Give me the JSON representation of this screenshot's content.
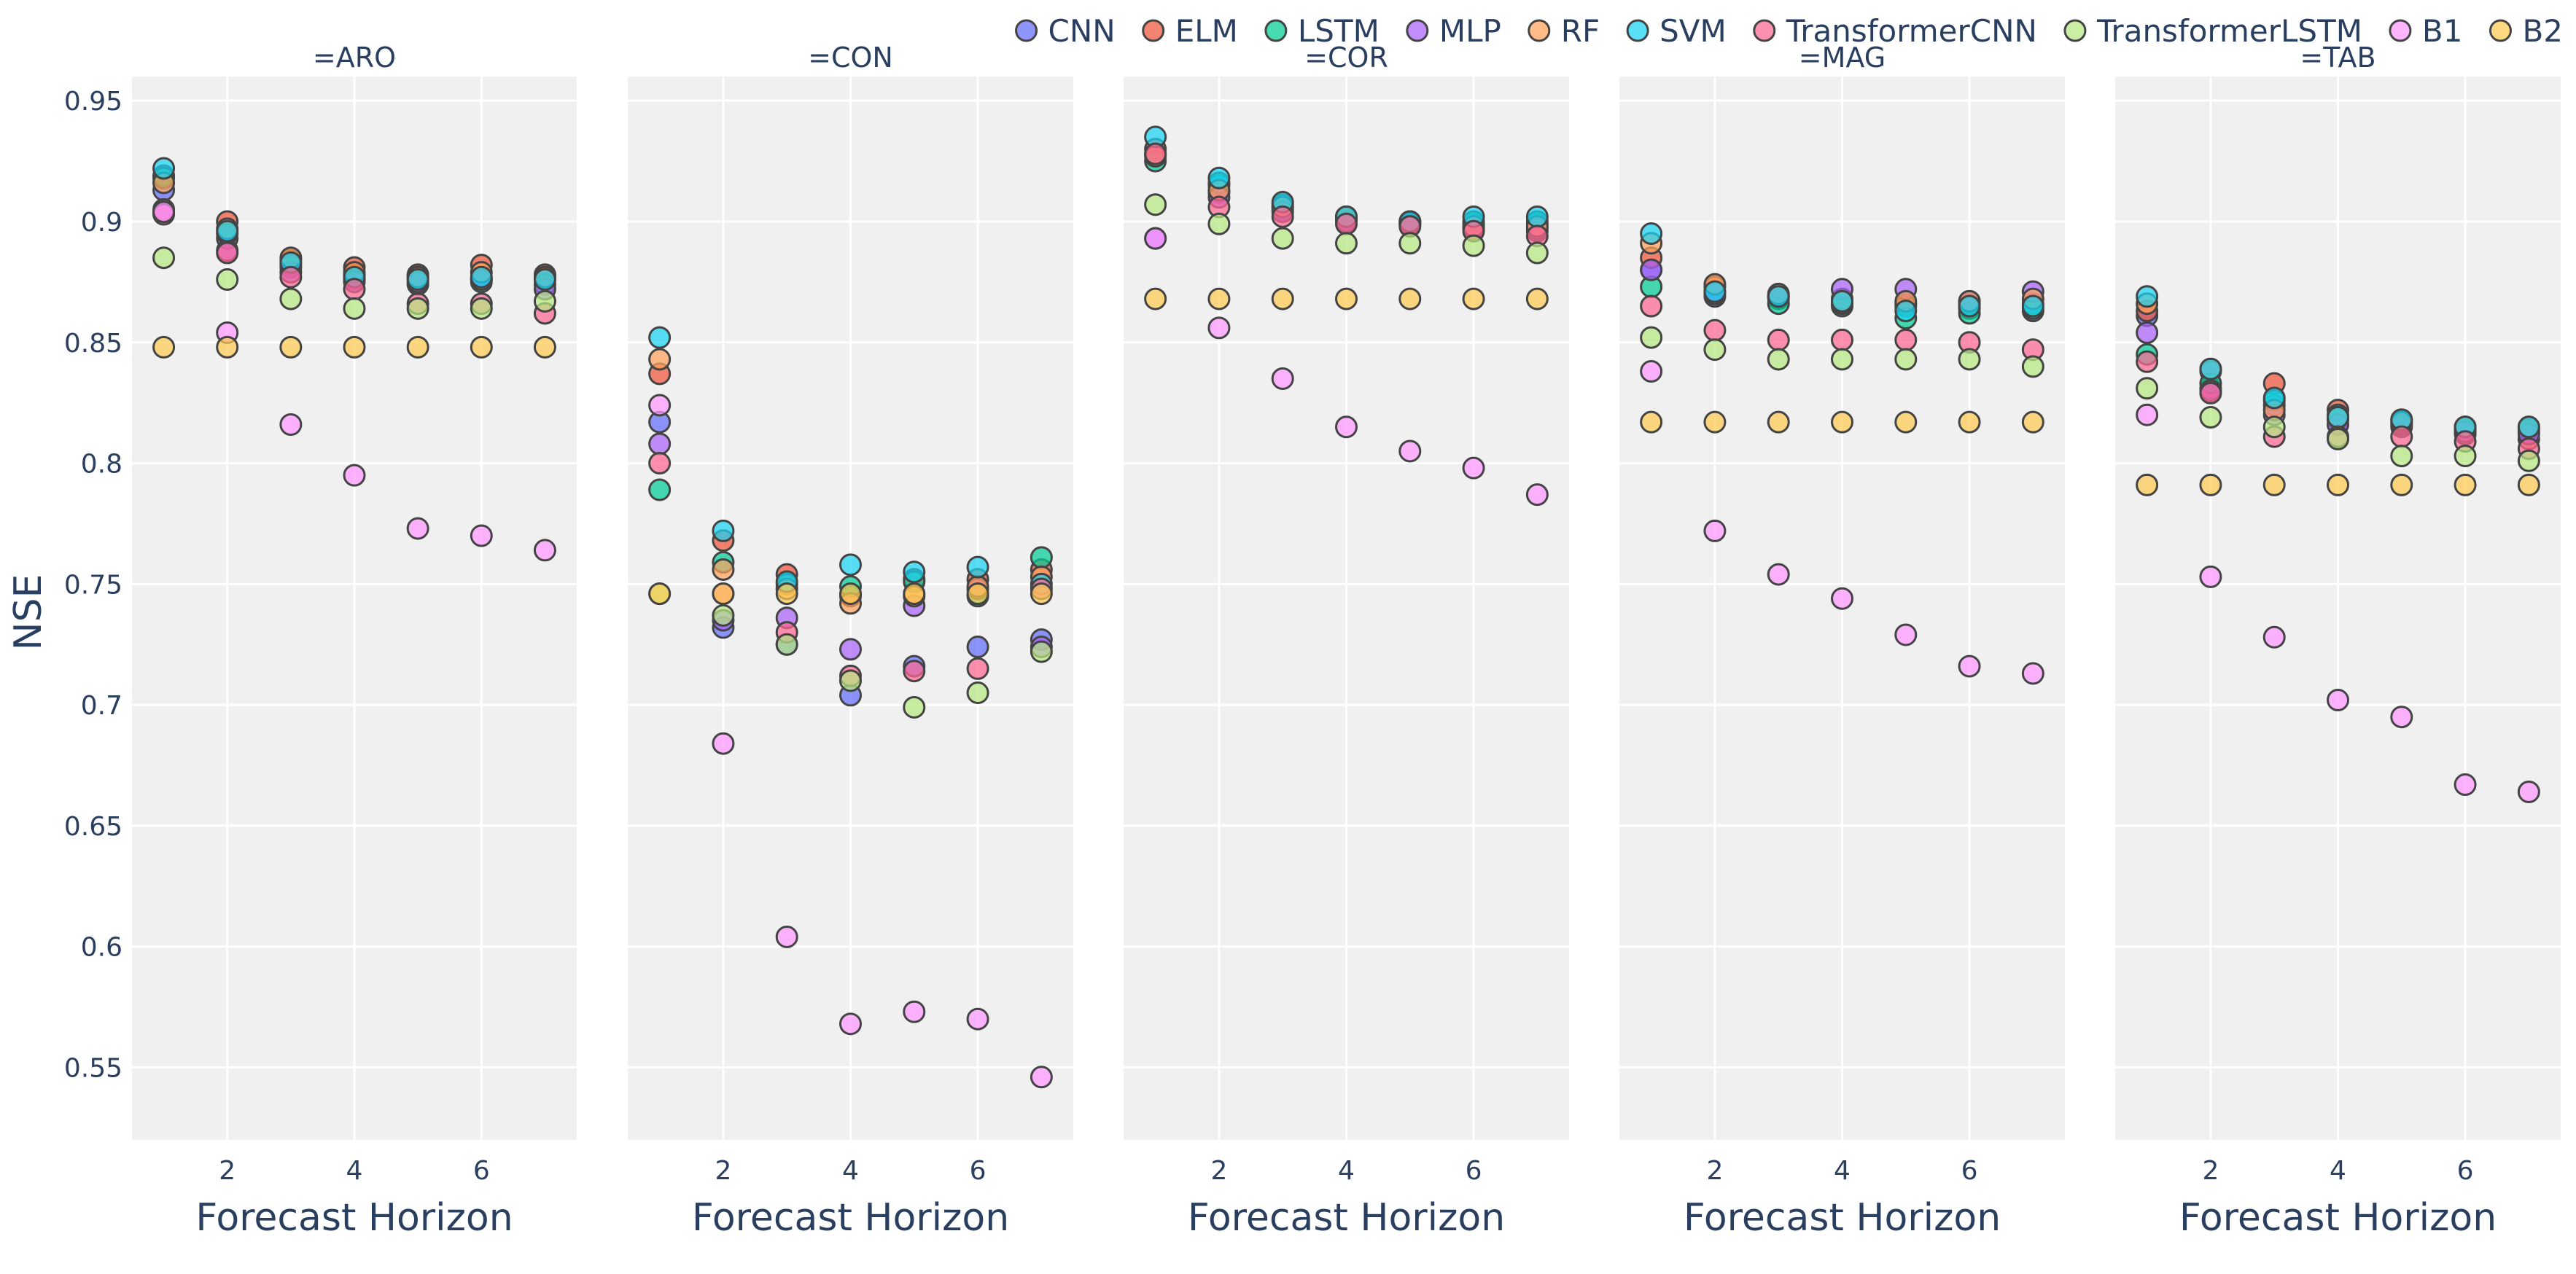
{
  "chart_data": {
    "type": "scatter",
    "ylabel": "NSE",
    "xlabel": "Forecast Horizon",
    "ylim": [
      0.52,
      0.96
    ],
    "xlim": [
      0.5,
      7.5
    ],
    "yticks": [
      0.55,
      0.6,
      0.65,
      0.7,
      0.75,
      0.8,
      0.85,
      0.9,
      0.95
    ],
    "ytick_labels": [
      "0.55",
      "0.6",
      "0.65",
      "0.7",
      "0.75",
      "0.8",
      "0.85",
      "0.9",
      "0.95"
    ],
    "xticks": [
      2,
      4,
      6
    ],
    "xtick_labels": [
      "2",
      "4",
      "6"
    ],
    "legend_position": "top-right",
    "models": [
      {
        "name": "CNN",
        "color": "#636EFA"
      },
      {
        "name": "ELM",
        "color": "#EF553B"
      },
      {
        "name": "LSTM",
        "color": "#00CC96"
      },
      {
        "name": "MLP",
        "color": "#AB63FA"
      },
      {
        "name": "RF",
        "color": "#FFA15A"
      },
      {
        "name": "SVM",
        "color": "#19D3F3"
      },
      {
        "name": "TransformerCNN",
        "color": "#FF6692"
      },
      {
        "name": "TransformerLSTM",
        "color": "#B6E880"
      },
      {
        "name": "B1",
        "color": "#FF97FF"
      },
      {
        "name": "B2",
        "color": "#FECB52"
      }
    ],
    "horizons": [
      1,
      2,
      3,
      4,
      5,
      6,
      7
    ],
    "facets": [
      {
        "title": "=ARO",
        "series": {
          "CNN": [
            0.913,
            0.893,
            0.881,
            0.878,
            0.877,
            0.876,
            0.876
          ],
          "ELM": [
            0.919,
            0.9,
            0.884,
            0.881,
            0.878,
            0.882,
            0.878
          ],
          "LSTM": [
            0.918,
            0.895,
            0.882,
            0.876,
            0.874,
            0.875,
            0.874
          ],
          "MLP": [
            0.905,
            0.888,
            0.879,
            0.875,
            0.875,
            0.876,
            0.872
          ],
          "RF": [
            0.916,
            0.897,
            0.885,
            0.879,
            0.877,
            0.879,
            0.877
          ],
          "SVM": [
            0.922,
            0.896,
            0.883,
            0.877,
            0.876,
            0.877,
            0.876
          ],
          "TransformerCNN": [
            0.903,
            0.887,
            0.877,
            0.872,
            0.866,
            0.866,
            0.862
          ],
          "TransformerLSTM": [
            0.885,
            0.876,
            0.868,
            0.864,
            0.864,
            0.864,
            0.867
          ],
          "B1": [
            0.904,
            0.854,
            0.816,
            0.795,
            0.773,
            0.77,
            0.764
          ],
          "B2": [
            0.848,
            0.848,
            0.848,
            0.848,
            0.848,
            0.848,
            0.848
          ]
        }
      },
      {
        "title": "=CON",
        "series": {
          "CNN": [
            0.817,
            0.732,
            0.725,
            0.704,
            0.716,
            0.724,
            0.727
          ],
          "ELM": [
            0.837,
            0.768,
            0.754,
            0.745,
            0.752,
            0.752,
            0.756
          ],
          "LSTM": [
            0.789,
            0.759,
            0.75,
            0.749,
            0.751,
            0.745,
            0.761
          ],
          "MLP": [
            0.808,
            0.735,
            0.736,
            0.723,
            0.741,
            0.748,
            0.724
          ],
          "RF": [
            0.843,
            0.756,
            0.748,
            0.742,
            0.745,
            0.749,
            0.753
          ],
          "SVM": [
            0.852,
            0.772,
            0.751,
            0.758,
            0.755,
            0.757,
            0.75
          ],
          "TransformerCNN": [
            0.8,
            0.746,
            0.73,
            0.712,
            0.714,
            0.715,
            0.748
          ],
          "TransformerLSTM": [
            0.746,
            0.737,
            0.725,
            0.71,
            0.699,
            0.705,
            0.722
          ],
          "B1": [
            0.824,
            0.684,
            0.604,
            0.568,
            0.573,
            0.57,
            0.546
          ],
          "B2": [
            0.746,
            0.746,
            0.746,
            0.746,
            0.746,
            0.746,
            0.746
          ]
        }
      },
      {
        "title": "=COR",
        "series": {
          "CNN": [
            0.928,
            0.915,
            0.905,
            0.901,
            0.899,
            0.899,
            0.899
          ],
          "ELM": [
            0.93,
            0.912,
            0.906,
            0.901,
            0.9,
            0.897,
            0.896
          ],
          "LSTM": [
            0.925,
            0.916,
            0.907,
            0.902,
            0.9,
            0.9,
            0.9
          ],
          "MLP": [
            0.893,
            0.91,
            0.904,
            0.9,
            0.899,
            0.898,
            0.897
          ],
          "RF": [
            0.927,
            0.913,
            0.906,
            0.902,
            0.899,
            0.898,
            0.898
          ],
          "SVM": [
            0.935,
            0.918,
            0.908,
            0.902,
            0.9,
            0.902,
            0.902
          ],
          "TransformerCNN": [
            0.928,
            0.906,
            0.902,
            0.899,
            0.898,
            0.896,
            0.894
          ],
          "TransformerLSTM": [
            0.907,
            0.899,
            0.893,
            0.891,
            0.891,
            0.89,
            0.887
          ],
          "B1": [
            0.893,
            0.856,
            0.835,
            0.815,
            0.805,
            0.798,
            0.787
          ],
          "B2": [
            0.868,
            0.868,
            0.868,
            0.868,
            0.868,
            0.868,
            0.868
          ]
        }
      },
      {
        "title": "=MAG",
        "series": {
          "CNN": [
            0.88,
            0.869,
            0.868,
            0.865,
            0.866,
            0.864,
            0.863
          ],
          "ELM": [
            0.885,
            0.873,
            0.869,
            0.866,
            0.865,
            0.866,
            0.866
          ],
          "LSTM": [
            0.873,
            0.87,
            0.866,
            0.868,
            0.86,
            0.862,
            0.864
          ],
          "MLP": [
            0.88,
            0.871,
            0.869,
            0.872,
            0.872,
            0.867,
            0.871
          ],
          "RF": [
            0.891,
            0.874,
            0.87,
            0.867,
            0.867,
            0.867,
            0.868
          ],
          "SVM": [
            0.895,
            0.871,
            0.869,
            0.867,
            0.863,
            0.865,
            0.865
          ],
          "TransformerCNN": [
            0.865,
            0.855,
            0.851,
            0.851,
            0.851,
            0.85,
            0.847
          ],
          "TransformerLSTM": [
            0.852,
            0.847,
            0.843,
            0.843,
            0.843,
            0.843,
            0.84
          ],
          "B1": [
            0.838,
            0.772,
            0.754,
            0.744,
            0.729,
            0.716,
            0.713
          ],
          "B2": [
            0.817,
            0.817,
            0.817,
            0.817,
            0.817,
            0.817,
            0.817
          ]
        }
      },
      {
        "title": "=TAB",
        "series": {
          "CNN": [
            0.861,
            0.838,
            0.824,
            0.818,
            0.817,
            0.814,
            0.813
          ],
          "ELM": [
            0.863,
            0.831,
            0.833,
            0.822,
            0.818,
            0.812,
            0.81
          ],
          "LSTM": [
            0.845,
            0.833,
            0.826,
            0.82,
            0.815,
            0.815,
            0.814
          ],
          "MLP": [
            0.854,
            0.83,
            0.82,
            0.816,
            0.816,
            0.813,
            0.812
          ],
          "RF": [
            0.866,
            0.839,
            0.822,
            0.819,
            0.817,
            0.815,
            0.815
          ],
          "SVM": [
            0.869,
            0.839,
            0.827,
            0.819,
            0.818,
            0.815,
            0.815
          ],
          "TransformerCNN": [
            0.842,
            0.829,
            0.811,
            0.811,
            0.811,
            0.809,
            0.806
          ],
          "TransformerLSTM": [
            0.831,
            0.819,
            0.815,
            0.81,
            0.803,
            0.803,
            0.801
          ],
          "B1": [
            0.82,
            0.753,
            0.728,
            0.702,
            0.695,
            0.667,
            0.664
          ],
          "B2": [
            0.791,
            0.791,
            0.791,
            0.791,
            0.791,
            0.791,
            0.791
          ]
        }
      }
    ]
  }
}
